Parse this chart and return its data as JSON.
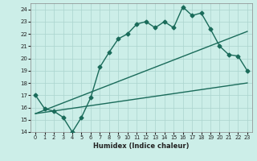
{
  "title": "",
  "xlabel": "Humidex (Indice chaleur)",
  "xlim": [
    -0.5,
    23.5
  ],
  "ylim": [
    14,
    24.5
  ],
  "xticks": [
    0,
    1,
    2,
    3,
    4,
    5,
    6,
    7,
    8,
    9,
    10,
    11,
    12,
    13,
    14,
    15,
    16,
    17,
    18,
    19,
    20,
    21,
    22,
    23
  ],
  "yticks": [
    14,
    15,
    16,
    17,
    18,
    19,
    20,
    21,
    22,
    23,
    24
  ],
  "bg_color": "#cceee8",
  "grid_color": "#aad4ce",
  "line_color": "#1a6b5a",
  "line1_x": [
    0,
    1,
    2,
    3,
    4,
    5,
    6,
    7,
    8,
    9,
    10,
    11,
    12,
    13,
    14,
    15,
    16,
    17,
    18,
    19,
    20,
    21,
    22,
    23
  ],
  "line1_y": [
    17.0,
    15.9,
    15.7,
    15.2,
    14.0,
    15.2,
    16.8,
    19.3,
    20.5,
    21.6,
    22.0,
    22.8,
    23.0,
    22.5,
    23.0,
    22.5,
    24.2,
    23.5,
    23.7,
    22.4,
    21.0,
    20.3,
    20.2,
    19.0
  ],
  "line2_x": [
    0,
    23
  ],
  "line2_y": [
    15.5,
    22.2
  ],
  "line3_x": [
    0,
    23
  ],
  "line3_y": [
    15.5,
    18.0
  ],
  "marker": "D",
  "markersize": 2.5,
  "linewidth": 1.0
}
